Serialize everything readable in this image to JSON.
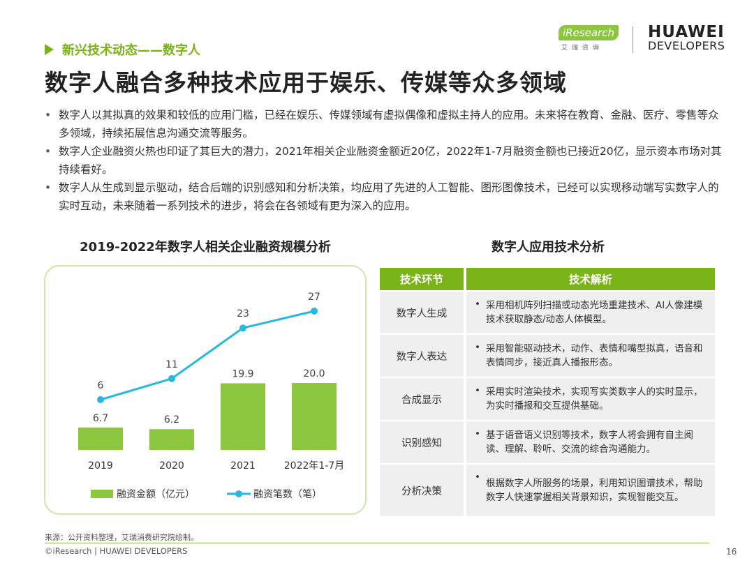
{
  "header": {
    "section_tag": "新兴技术动态——数字人",
    "title": "数字人融合多种技术应用于娱乐、传媒等众多领域",
    "logo_iresearch": "iResearch",
    "logo_iresearch_sub": "艾瑞咨询",
    "logo_huawei": "HUAWEI",
    "logo_developers": "DEVELOPERS"
  },
  "bullets": [
    "数字人以其拟真的效果和较低的应用门槛，已经在娱乐、传媒领域有虚拟偶像和虚拟主持人的应用。未来将在教育、金融、医疗、零售等众多领域，持续拓展信息沟通交流等服务。",
    "数字人企业融资火热也印证了其巨大的潜力，2021年相关企业融资金额近20亿，2022年1-7月融资金额也已接近20亿，显示资本市场对其持续看好。",
    "数字人从生成到显示驱动，结合后端的识别感知和分析决策，均应用了先进的人工智能、图形图像技术，已经可以实现移动端写实数字人的实时互动，未来随着一系列技术的进步，将会在各领域有更为深入的应用。"
  ],
  "chart_data": {
    "type": "bar",
    "title": "2019-2022年数字人相关企业融资规模分析",
    "categories": [
      "2019",
      "2020",
      "2021",
      "2022年1-7月"
    ],
    "series": [
      {
        "name": "融资金额（亿元）",
        "type": "bar",
        "color": "#8cc63f",
        "values": [
          6.7,
          6.2,
          19.9,
          20.0
        ],
        "labels": [
          "6.7",
          "6.2",
          "19.9",
          "20.0"
        ]
      },
      {
        "name": "融资笔数（笔）",
        "type": "line",
        "color": "#26b8e0",
        "values": [
          6,
          11,
          23,
          27
        ],
        "labels": [
          "6",
          "11",
          "23",
          "27"
        ]
      }
    ],
    "legend": "bottom",
    "grid": false
  },
  "table": {
    "title": "数字人应用技术分析",
    "headers": [
      "技术环节",
      "技术解析"
    ],
    "rows": [
      {
        "stage": "数字人生成",
        "desc": "采用相机阵列扫描或动态光场重建技术、AI人像建模技术获取静态/动态人体模型。"
      },
      {
        "stage": "数字人表达",
        "desc": "采用智能驱动技术，动作、表情和嘴型拟真，语音和表情同步，接近真人播报形态。"
      },
      {
        "stage": "合成显示",
        "desc": "采用实时渲染技术，实现写实类数字人的实时显示，为实时播报和交互提供基础。"
      },
      {
        "stage": "识别感知",
        "desc": "基于语音语义识别等技术，数字人将会拥有自主阅读、理解、聆听、交流的综合沟通能力。"
      },
      {
        "stage": "分析决策",
        "desc": "根据数字人所服务的场景，利用知识图谱技术，帮助数字人快速掌握相关背景知识，实现智能交互。"
      }
    ]
  },
  "footer": {
    "source": "来源：公开资料整理，艾瑞消费研究院绘制。",
    "copyright": "©iResearch | HUAWEI DEVELOPERS",
    "page_number": "16"
  },
  "colors": {
    "accent_green": "#7ab317",
    "line_blue": "#26b8e0",
    "bar_green": "#8cc63f"
  }
}
